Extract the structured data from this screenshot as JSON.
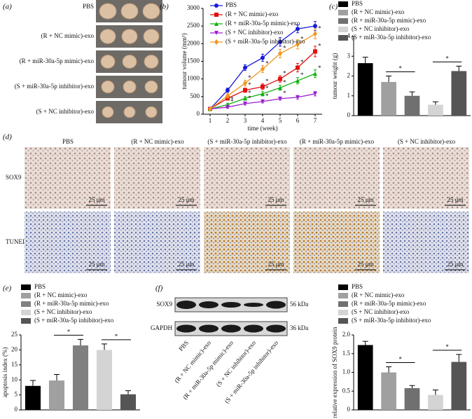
{
  "panel_a": {
    "label": "(a)",
    "rows": [
      "PBS",
      "(R + NC mimic)-exo",
      "(R + miR-30a-5p mimic)-exo",
      "(S + miR-30a-5p inhibitor)-exo",
      "(S + NC inhibitor)-exo"
    ]
  },
  "panel_d": {
    "label": "(d)",
    "columns": [
      "PBS",
      "(R + NC mimic)-exo",
      "(S + miR-30a-5p inhibitor)-exo",
      "(R + miR-30a-5p mimic)-exo",
      "(S + NC inhibitor)-exo"
    ],
    "rows": [
      "SOX9",
      "TUNEL"
    ],
    "scale_bar": "25 μm"
  },
  "panel_f_blot": {
    "label": "(f)",
    "rows": [
      "SOX9",
      "GAPDH"
    ],
    "sizes": [
      "56 kDa",
      "36 kDa"
    ],
    "lanes": [
      "PBS",
      "(R + NC mimic)-exo",
      "(R + miR-30a-5p mimic)-exo",
      "(S + NC inhibitor)-exo",
      "(S + miR-30a-5p inhibitor)-exo"
    ]
  },
  "chart_data": [
    {
      "type": "line",
      "label": "(b)",
      "x_label": "time (week)",
      "y_label": "tumour volume (mm³)",
      "x": [
        1,
        2,
        3,
        4,
        5,
        6,
        7
      ],
      "xlim": [
        0.6,
        7.4
      ],
      "xticks": [
        1,
        2,
        3,
        4,
        5,
        6,
        7
      ],
      "ylim": [
        0,
        3000
      ],
      "yticks": [
        0,
        500,
        1000,
        1500,
        2000,
        2500,
        3000
      ],
      "series": [
        {
          "name": "PBS",
          "color": "#1a1adb",
          "marker": "circle",
          "values": [
            150,
            680,
            1320,
            1600,
            2050,
            2420,
            2500
          ],
          "errors": [
            30,
            60,
            80,
            100,
            120,
            110,
            130
          ]
        },
        {
          "name": "(R + NC mimic)-exo",
          "color": "#e01010",
          "marker": "square",
          "values": [
            150,
            450,
            680,
            780,
            1000,
            1320,
            1780
          ],
          "errors": [
            30,
            50,
            60,
            80,
            90,
            120,
            150
          ],
          "annotation": "*",
          "annotated_x": [
            3,
            4,
            5,
            6,
            7
          ]
        },
        {
          "name": "(R + miR-30a-5p mimic)-exo",
          "color": "#10b010",
          "marker": "triangle",
          "values": [
            150,
            270,
            450,
            580,
            750,
            950,
            1150
          ],
          "errors": [
            30,
            40,
            50,
            60,
            70,
            90,
            110
          ],
          "annotation": "*",
          "annotated_x": [
            2,
            3,
            4,
            5,
            6,
            7
          ]
        },
        {
          "name": "(S + NC inhibitor)-exo",
          "color": "#9a20d0",
          "marker": "down",
          "values": [
            150,
            200,
            300,
            360,
            440,
            480,
            580
          ],
          "errors": [
            20,
            30,
            40,
            40,
            40,
            50,
            60
          ],
          "annotation": "*",
          "annotated_x": [
            2,
            3,
            4,
            5
          ]
        },
        {
          "name": "(S + miR-30a-5p inhibitor)-exo",
          "color": "#f0961e",
          "marker": "diamond",
          "values": [
            150,
            520,
            880,
            1280,
            1720,
            1980,
            2280
          ],
          "errors": [
            30,
            60,
            80,
            100,
            120,
            130,
            140
          ],
          "annotation": "*",
          "annotated_x": [
            3,
            4,
            5,
            6,
            7
          ]
        }
      ]
    },
    {
      "type": "bar",
      "label": "(c)",
      "y_label": "tumour weight (g)",
      "categories": [
        "PBS",
        "(R + NC mimic)-exo",
        "(R + miR-30a-5p mimic)-exo",
        "(S + NC inhibitor)-exo",
        "(S + miR-30a-5p inhibitor)-exo"
      ],
      "values": [
        2.65,
        1.7,
        1.0,
        0.55,
        2.25
      ],
      "errors": [
        0.3,
        0.3,
        0.2,
        0.15,
        0.25
      ],
      "colors": [
        "#000000",
        "#a0a0a0",
        "#707070",
        "#d4d4d4",
        "#555555"
      ],
      "ylim": [
        0,
        4
      ],
      "yticks": [
        0,
        1,
        2,
        3,
        4
      ],
      "significance": [
        {
          "label": "*",
          "between": [
            1,
            2
          ]
        },
        {
          "label": "*",
          "between": [
            3,
            4
          ]
        }
      ]
    },
    {
      "type": "bar",
      "label": "(e)",
      "y_label": "apoptosis index (%)",
      "categories": [
        "PBS",
        "(R + NC mimic)-exo",
        "(R + miR-30a-5p mimic)-exo",
        "(S + NC inhibitor)-exo",
        "(S + miR-30a-5p inhibitor)-exo"
      ],
      "values": [
        8,
        9.8,
        21.5,
        20,
        5.2
      ],
      "errors": [
        1.8,
        2,
        2,
        2,
        1.2
      ],
      "colors": [
        "#000000",
        "#a0a0a0",
        "#808080",
        "#d4d4d4",
        "#555555"
      ],
      "ylim": [
        0,
        25
      ],
      "yticks": [
        0,
        5,
        10,
        15,
        20,
        25
      ],
      "significance": [
        {
          "label": "*",
          "between": [
            1,
            2
          ]
        },
        {
          "label": "*",
          "between": [
            3,
            4
          ]
        }
      ]
    },
    {
      "type": "bar",
      "y_label": "relative expression of SOX9 protein",
      "categories": [
        "PBS",
        "(R + NC mimic)-exo",
        "(R + miR-30a-5p mimic)-exo",
        "(S + NC inhibitor)-exo",
        "(S + miR-30a-5p inhibitor)-exo"
      ],
      "values": [
        1.73,
        1.0,
        0.58,
        0.4,
        1.28
      ],
      "errors": [
        0.1,
        0.15,
        0.07,
        0.13,
        0.2
      ],
      "colors": [
        "#000000",
        "#a0a0a0",
        "#707070",
        "#d4d4d4",
        "#555555"
      ],
      "ylim": [
        0,
        2
      ],
      "yticks": [
        0,
        {
          "value": 0.5,
          "label": "0.5"
        },
        {
          "value": 1,
          "label": "1.0"
        },
        {
          "value": 1.5,
          "label": "1.5"
        },
        {
          "value": 2,
          "label": "2.0"
        }
      ],
      "significance": [
        {
          "label": "*",
          "between": [
            1,
            2
          ]
        },
        {
          "label": "*",
          "between": [
            3,
            4
          ]
        }
      ]
    }
  ]
}
